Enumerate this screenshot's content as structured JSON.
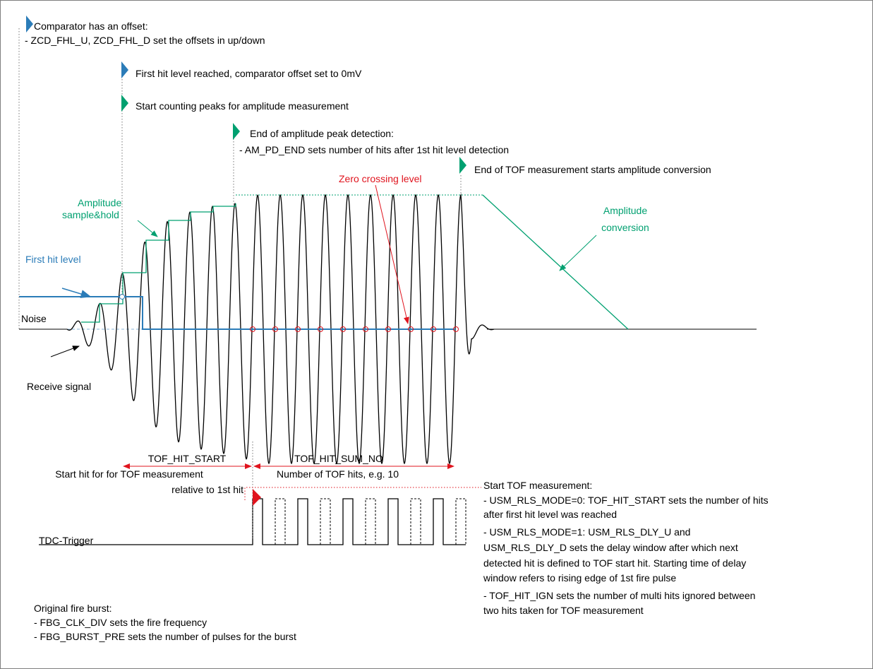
{
  "labels": {
    "comparator_offset": [
      "Comparator has an offset:",
      "- ZCD_FHL_U, ZCD_FHL_D set the offsets in up/down"
    ],
    "first_hit_reached": "First hit level reached, comparator offset set to 0mV",
    "start_counting": "Start counting peaks for amplitude measurement",
    "end_peak_detection": [
      "End of amplitude peak detection:",
      "- AM_PD_END sets number of hits after 1st hit level detection"
    ],
    "end_tof": "End of TOF measurement starts amplitude conversion",
    "zero_crossing": "Zero crossing level",
    "sample_hold": [
      "Amplitude",
      "sample&hold"
    ],
    "conversion": [
      "Amplitude",
      "conversion"
    ],
    "first_hit_level": "First hit level",
    "noise": "Noise",
    "receive_signal": "Receive signal",
    "tof_hit_start": "TOF_HIT_START",
    "tof_hit_start_desc": [
      "Start hit for for TOF measurement",
      "relative to 1st hit"
    ],
    "tof_hit_sum_no": "TOF_HIT_SUM_NO",
    "tof_hit_sum_no_desc": "Number of TOF hits, e.g. 10",
    "start_tof": [
      "Start TOF measurement:",
      "- USM_RLS_MODE=0: TOF_HIT_START sets the number of hits",
      "after first hit level was reached",
      "- USM_RLS_MODE=1: USM_RLS_DLY_U and",
      "USM_RLS_DLY_D sets the delay window after which next",
      "detected hit is defined to TOF start hit. Starting time of delay",
      "window refers to rising edge of 1st fire pulse",
      "- TOF_HIT_IGN sets the number of multi hits ignored between",
      "two hits taken for TOF measurement"
    ],
    "tdc_trigger": "TDC-Trigger",
    "fire_burst": [
      "Original fire burst:",
      "- FBG_CLK_DIV sets the fire frequency",
      "- FBG_BURST_PRE sets the number of pulses for the burst"
    ]
  }
}
